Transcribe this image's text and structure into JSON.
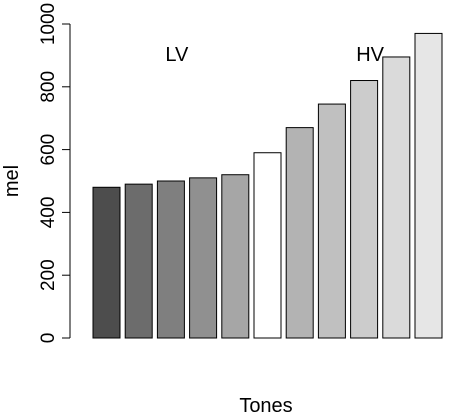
{
  "chart_data": {
    "type": "bar",
    "xlabel": "Tones",
    "ylabel": "mel",
    "ylim": [
      0,
      1000
    ],
    "yticks": [
      0,
      200,
      400,
      600,
      800,
      1000
    ],
    "grid": false,
    "values": [
      480,
      490,
      500,
      510,
      520,
      590,
      670,
      745,
      820,
      895,
      970
    ],
    "bar_colors": [
      "#4d4d4d",
      "#6c6c6c",
      "#7f7f7f",
      "#909090",
      "#a6a6a6",
      "#ffffff",
      "#b3b3b3",
      "#c0c0c0",
      "#cccccc",
      "#dadada",
      "#e6e6e6"
    ],
    "annotations": [
      {
        "text": "LV",
        "near_bar": 2
      },
      {
        "text": "HV",
        "near_bar": 8
      }
    ]
  }
}
